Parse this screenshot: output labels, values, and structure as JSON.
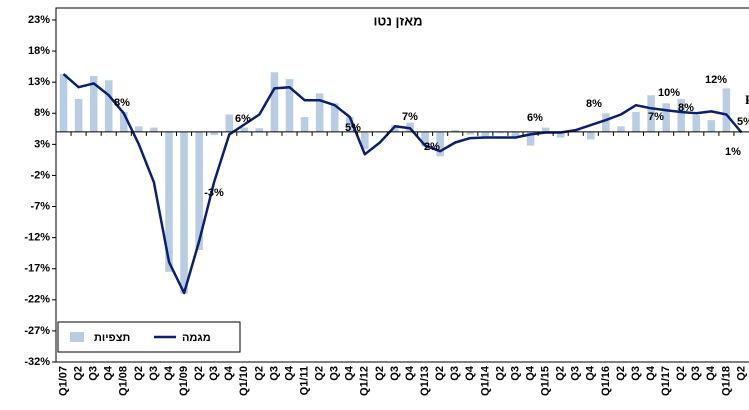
{
  "chart_data": {
    "type": "bar",
    "title": "מאזן נטו",
    "categories": [
      "Q1/07",
      "Q2",
      "Q3",
      "Q4",
      "Q1/08",
      "Q2",
      "Q3",
      "Q4",
      "Q1/09",
      "Q2",
      "Q3",
      "Q4",
      "Q1/10",
      "Q2",
      "Q3",
      "Q4",
      "Q1/11",
      "Q2",
      "Q3",
      "Q4",
      "Q1/12",
      "Q2",
      "Q3",
      "Q4",
      "Q1/13",
      "Q2",
      "Q3",
      "Q4",
      "Q1/14",
      "Q2",
      "Q3",
      "Q4",
      "Q1/15",
      "Q2",
      "Q3",
      "Q4",
      "Q1/16",
      "Q2",
      "Q3",
      "Q4",
      "Q1/17",
      "Q2",
      "Q3",
      "Q4",
      "Q1/18",
      "Q2"
    ],
    "series": [
      {
        "name": "תצפיות",
        "type": "bar",
        "color": "#b8cce4",
        "values": [
          14.3,
          10.3,
          14,
          13.3,
          8.2,
          5.9,
          5.7,
          -17.5,
          -21,
          -14,
          4.5,
          7.8,
          5.7,
          5.6,
          14.6,
          13.5,
          7.4,
          11.2,
          9.6,
          7.4,
          2.2,
          5.1,
          6.1,
          6.5,
          2.7,
          1.1,
          5.3,
          4.6,
          4,
          4.8,
          4.3,
          2.8,
          5.7,
          4.1,
          5.4,
          3.8,
          8,
          5.9,
          8.2,
          10.9,
          9.6,
          10.3,
          7.7,
          6.9,
          12,
          4.9
        ]
      },
      {
        "name": "מגמה",
        "type": "line",
        "color": "#0a1f6e",
        "values": [
          14.3,
          12.2,
          12.8,
          10.9,
          8,
          3,
          -3.1,
          -15.9,
          -20.9,
          -12.6,
          -3,
          4.6,
          6.2,
          7.8,
          12,
          12.2,
          10.1,
          10.1,
          9.3,
          7.4,
          1.4,
          3.3,
          5.9,
          5.6,
          2.8,
          1.9,
          3.3,
          4,
          4.1,
          4.1,
          4.1,
          4.6,
          4.9,
          4.9,
          5.3,
          6.1,
          6.9,
          7.8,
          9.3,
          8.8,
          8.5,
          8.2,
          8,
          8.3,
          7.8,
          4.9
        ]
      }
    ],
    "annotations": [
      "8%",
      "-3%",
      "6%",
      "5%",
      "7%",
      "2%",
      "6%",
      "8%",
      "10%",
      "8%",
      "7%",
      "12%",
      "1%",
      "5%",
      "F"
    ],
    "ylim": [
      -32,
      23
    ],
    "yticks": [
      {
        "value": -32,
        "label": "-32%"
      },
      {
        "value": -27,
        "label": "-27%"
      },
      {
        "value": -22,
        "label": "-22%"
      },
      {
        "value": -17,
        "label": "-17%"
      },
      {
        "value": -12,
        "label": "-12%"
      },
      {
        "value": -7,
        "label": "-7%"
      },
      {
        "value": -2,
        "label": "-2%"
      },
      {
        "value": 3,
        "label": "3%"
      },
      {
        "value": 8,
        "label": "8%"
      },
      {
        "value": 13,
        "label": "13%"
      },
      {
        "value": 18,
        "label": "18%"
      },
      {
        "value": 23,
        "label": "23%"
      }
    ],
    "baseline": 5,
    "grid": false,
    "legend": "bottom-left"
  }
}
